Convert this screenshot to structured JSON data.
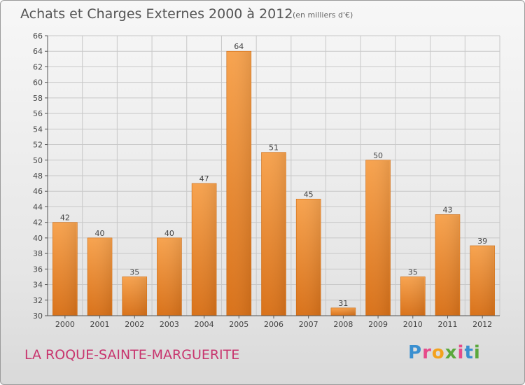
{
  "header": {
    "title": "Achats et Charges Externes 2000 à 2012",
    "subtitle": "(en milliers d'€)"
  },
  "footer": {
    "commune": "LA ROQUE-SAINTE-MARGUERITE",
    "logo_text": "Proxiti",
    "logo_colors": [
      "#3a8fd0",
      "#e64b8a",
      "#f3a21e",
      "#5aa83c",
      "#e64b8a",
      "#3a8fd0",
      "#5aa83c"
    ]
  },
  "colors": {
    "bar": "#f09a3e",
    "bar_dark": "#d9771c",
    "grid": "#c8c8c8",
    "axis": "#555555"
  },
  "chart_data": {
    "type": "bar",
    "categories": [
      "2000",
      "2001",
      "2002",
      "2003",
      "2004",
      "2005",
      "2006",
      "2007",
      "2008",
      "2009",
      "2010",
      "2011",
      "2012"
    ],
    "values": [
      42,
      40,
      35,
      40,
      47,
      64,
      51,
      45,
      31,
      50,
      35,
      43,
      39
    ],
    "ylim": [
      30,
      66
    ],
    "yticks": [
      30,
      32,
      34,
      36,
      38,
      40,
      42,
      44,
      46,
      48,
      50,
      52,
      54,
      56,
      58,
      60,
      62,
      64,
      66
    ],
    "grid": true
  }
}
